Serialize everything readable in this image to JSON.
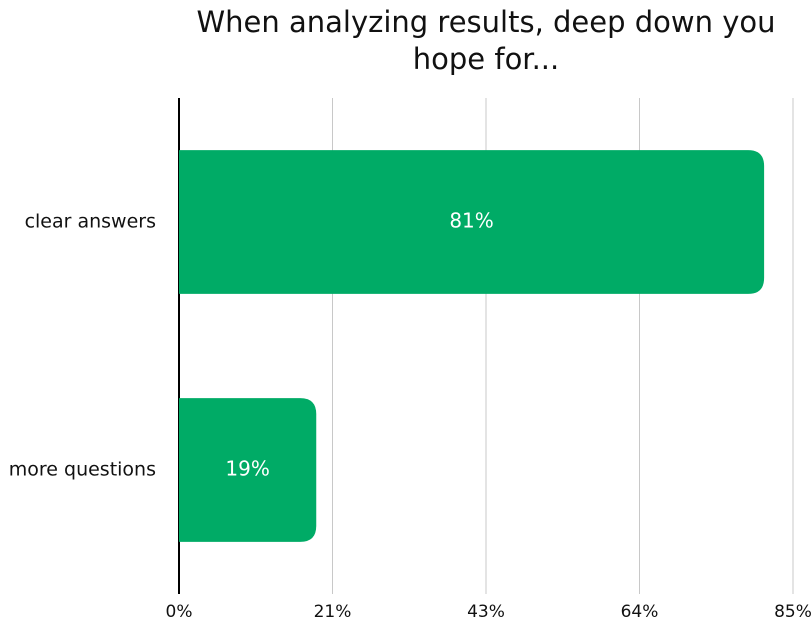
{
  "chart_data": {
    "type": "bar",
    "orientation": "horizontal",
    "title": "When analyzing results, deep down you hope for...",
    "categories": [
      "clear answers",
      "more questions"
    ],
    "values": [
      81,
      19
    ],
    "value_labels": [
      "81%",
      "19%"
    ],
    "color": "#00ab66",
    "xlim": [
      0,
      85
    ],
    "xticks": [
      {
        "value": 0,
        "label": "0%"
      },
      {
        "value": 21.25,
        "label": "21%"
      },
      {
        "value": 42.5,
        "label": "43%"
      },
      {
        "value": 63.75,
        "label": "64%"
      },
      {
        "value": 85,
        "label": "85%"
      }
    ],
    "grid": true
  }
}
